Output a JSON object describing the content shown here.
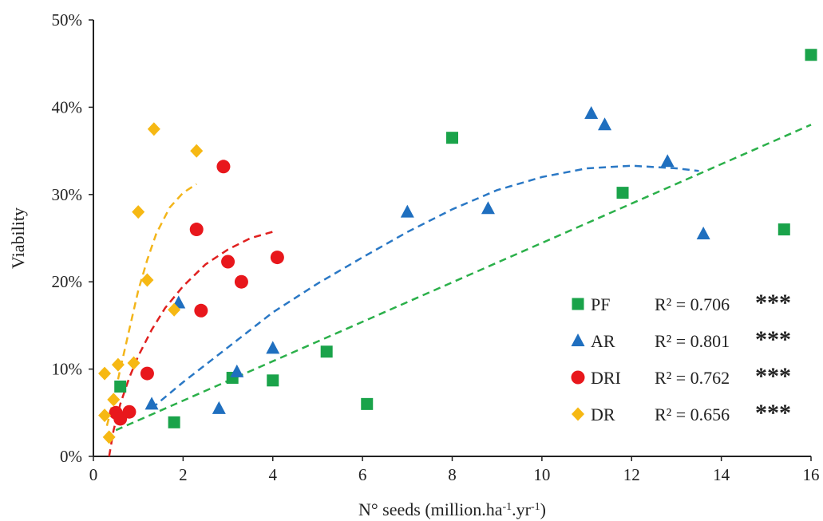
{
  "chart_data": {
    "type": "scatter",
    "xlabel": "N° seeds (million.ha⁻¹.yr⁻¹)",
    "ylabel": "Viability",
    "xlim": [
      0,
      16
    ],
    "ylim": [
      0,
      0.5
    ],
    "xticks": [
      0,
      2,
      4,
      6,
      8,
      10,
      12,
      14,
      16
    ],
    "yticks": [
      "0%",
      "10%",
      "20%",
      "30%",
      "40%",
      "50%"
    ],
    "grid": false,
    "legend_position": "bottom-right",
    "series": [
      {
        "name": "PF",
        "r2": "R² = 0.706",
        "significance": "***",
        "marker": "square",
        "color": "#1aa34a",
        "trend_color": "#2bb04a",
        "points": [
          [
            0.6,
            0.08
          ],
          [
            1.8,
            0.039
          ],
          [
            3.1,
            0.09
          ],
          [
            4.0,
            0.087
          ],
          [
            5.2,
            0.12
          ],
          [
            6.1,
            0.06
          ],
          [
            8.0,
            0.365
          ],
          [
            11.8,
            0.302
          ],
          [
            15.4,
            0.26
          ],
          [
            16.0,
            0.46
          ]
        ],
        "trend": [
          [
            0.5,
            0.03
          ],
          [
            16.0,
            0.38
          ]
        ]
      },
      {
        "name": "AR",
        "r2": "R² = 0.801",
        "significance": "***",
        "marker": "triangle",
        "color": "#1f6fbf",
        "trend_color": "#2a78c5",
        "points": [
          [
            1.3,
            0.06
          ],
          [
            1.9,
            0.176
          ],
          [
            2.8,
            0.055
          ],
          [
            3.2,
            0.097
          ],
          [
            4.0,
            0.124
          ],
          [
            7.0,
            0.28
          ],
          [
            8.8,
            0.284
          ],
          [
            11.1,
            0.393
          ],
          [
            11.4,
            0.38
          ],
          [
            12.8,
            0.338
          ],
          [
            13.6,
            0.255
          ]
        ],
        "trend": [
          [
            1.3,
            0.055
          ],
          [
            2.0,
            0.085
          ],
          [
            3.0,
            0.125
          ],
          [
            4.0,
            0.165
          ],
          [
            5.0,
            0.198
          ],
          [
            6.0,
            0.228
          ],
          [
            7.0,
            0.257
          ],
          [
            8.0,
            0.283
          ],
          [
            9.0,
            0.305
          ],
          [
            10.0,
            0.32
          ],
          [
            11.0,
            0.33
          ],
          [
            12.0,
            0.333
          ],
          [
            13.0,
            0.33
          ],
          [
            13.5,
            0.327
          ]
        ]
      },
      {
        "name": "DRI",
        "r2": "R² = 0.762",
        "significance": "***",
        "marker": "circle",
        "color": "#e8171c",
        "trend_color": "#e0201f",
        "points": [
          [
            0.5,
            0.05
          ],
          [
            0.6,
            0.043
          ],
          [
            0.8,
            0.051
          ],
          [
            1.2,
            0.095
          ],
          [
            2.3,
            0.26
          ],
          [
            2.4,
            0.167
          ],
          [
            2.9,
            0.332
          ],
          [
            3.0,
            0.223
          ],
          [
            3.3,
            0.2
          ],
          [
            4.1,
            0.228
          ]
        ],
        "trend": [
          [
            0.35,
            0.0
          ],
          [
            0.45,
            0.03
          ],
          [
            0.6,
            0.06
          ],
          [
            0.8,
            0.09
          ],
          [
            1.0,
            0.115
          ],
          [
            1.3,
            0.145
          ],
          [
            1.6,
            0.17
          ],
          [
            2.0,
            0.195
          ],
          [
            2.5,
            0.22
          ],
          [
            3.0,
            0.237
          ],
          [
            3.5,
            0.25
          ],
          [
            4.05,
            0.258
          ]
        ]
      },
      {
        "name": "DR",
        "r2": "R² = 0.656",
        "significance": "***",
        "marker": "diamond",
        "color": "#f6b813",
        "trend_color": "#f3b51a",
        "points": [
          [
            0.25,
            0.095
          ],
          [
            0.25,
            0.047
          ],
          [
            0.35,
            0.022
          ],
          [
            0.45,
            0.065
          ],
          [
            0.55,
            0.105
          ],
          [
            0.9,
            0.107
          ],
          [
            1.0,
            0.28
          ],
          [
            1.2,
            0.202
          ],
          [
            1.35,
            0.375
          ],
          [
            1.8,
            0.168
          ],
          [
            2.3,
            0.35
          ]
        ],
        "trend": [
          [
            0.3,
            0.035
          ],
          [
            0.45,
            0.065
          ],
          [
            0.6,
            0.1
          ],
          [
            0.8,
            0.145
          ],
          [
            1.0,
            0.19
          ],
          [
            1.2,
            0.225
          ],
          [
            1.4,
            0.255
          ],
          [
            1.7,
            0.285
          ],
          [
            2.0,
            0.302
          ],
          [
            2.3,
            0.312
          ]
        ]
      }
    ]
  }
}
